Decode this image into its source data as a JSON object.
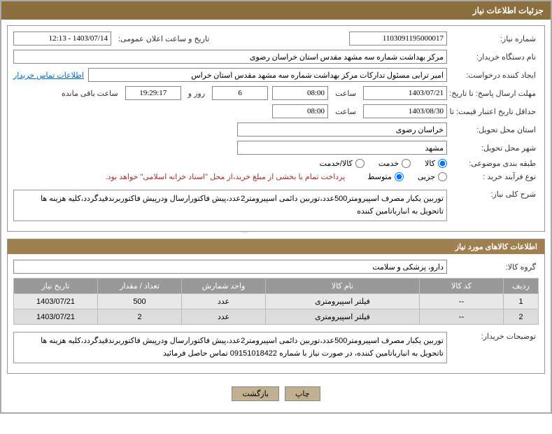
{
  "header": {
    "title": "جزئیات اطلاعات نیاز"
  },
  "need": {
    "numberLabel": "شماره نیاز:",
    "number": "1103091195000017",
    "announceLabel": "تاریخ و ساعت اعلان عمومی:",
    "announceValue": "1403/07/14 - 12:13",
    "buyerOrgLabel": "نام دستگاه خریدار:",
    "buyerOrg": "مرکز بهداشت شماره سه مشهد مقدس استان خراسان رضوی",
    "requesterLabel": "ایجاد کننده درخواست:",
    "requester": "امیر ترابی مسئول تدارکات مرکز بهداشت شماره سه مشهد مقدس استان خراس",
    "contactLink": "اطلاعات تماس خریدار",
    "deadlineLabel": "مهلت ارسال پاسخ: تا تاریخ:",
    "deadlineDate": "1403/07/21",
    "timeLabel": "ساعت",
    "deadlineTime": "08:00",
    "daysLeft": "6",
    "daysAndLabel": "روز و",
    "countdown": "19:29:17",
    "remainLabel": "ساعت باقی مانده",
    "validityLabel": "حداقل تاریخ اعتبار قیمت: تا تاریخ:",
    "validityDate": "1403/08/30",
    "validityTime": "08:00",
    "provinceLabel": "استان محل تحویل:",
    "province": "خراسان رضوی",
    "cityLabel": "شهر محل تحویل:",
    "city": "مشهد",
    "categoryLabel": "طبقه بندی موضوعی:",
    "catGoods": "کالا",
    "catService": "خدمت",
    "catBoth": "کالا/خدمت",
    "processLabel": "نوع فرآیند خرید :",
    "procSmall": "جزیی",
    "procMed": "متوسط",
    "paymentNote": "پرداخت تمام یا بخشی از مبلغ خرید،از محل \"اسناد خزانه اسلامی\" خواهد بود.",
    "summaryLabel": "شرح کلی نیاز:",
    "summary": "توربین یکبار مصرف اسپیرومتر500عدد،توربین دائمی اسپیرومتر2عدد،پیش فاکتورارسال ودرپیش فاکتوربرندقیدگردد،کلیه هزینه ها تاتحویل به انبارباتامین کننده"
  },
  "items": {
    "sectionTitle": "اطلاعات کالاهای مورد نیاز",
    "groupLabel": "گروه کالا:",
    "group": "دارو، پزشکی و سلامت",
    "cols": {
      "row": "ردیف",
      "code": "کد کالا",
      "name": "نام کالا",
      "unit": "واحد شمارش",
      "qty": "تعداد / مقدار",
      "date": "تاریخ نیاز"
    },
    "rows": [
      {
        "n": "1",
        "code": "--",
        "name": "فیلتر اسپیرومتری",
        "unit": "عدد",
        "qty": "500",
        "date": "1403/07/21"
      },
      {
        "n": "2",
        "code": "--",
        "name": "فیلتر اسپیرومتری",
        "unit": "عدد",
        "qty": "2",
        "date": "1403/07/21"
      }
    ],
    "notesLabel": "توضیحات خریدار:",
    "notes": "توربین یکبار مصرف اسپیرومتر500عدد،توربین دائمی اسپیرومتر2عدد،پیش فاکتورارسال ودرپیش فاکتوربرندقیدگردد،کلیه هزینه ها تاتحویل به انبارباتامین کننده، در صورت نیاز با شماره 09151018422 تماس حاصل فرمائید"
  },
  "buttons": {
    "print": "چاپ",
    "back": "بازگشت"
  },
  "style": {
    "headerBg": "#8b6f3f",
    "subHeaderBg": "#a08050",
    "btnBg": "#c0b090",
    "thBg": "#999999",
    "tdBg": "#e8e8e8"
  }
}
